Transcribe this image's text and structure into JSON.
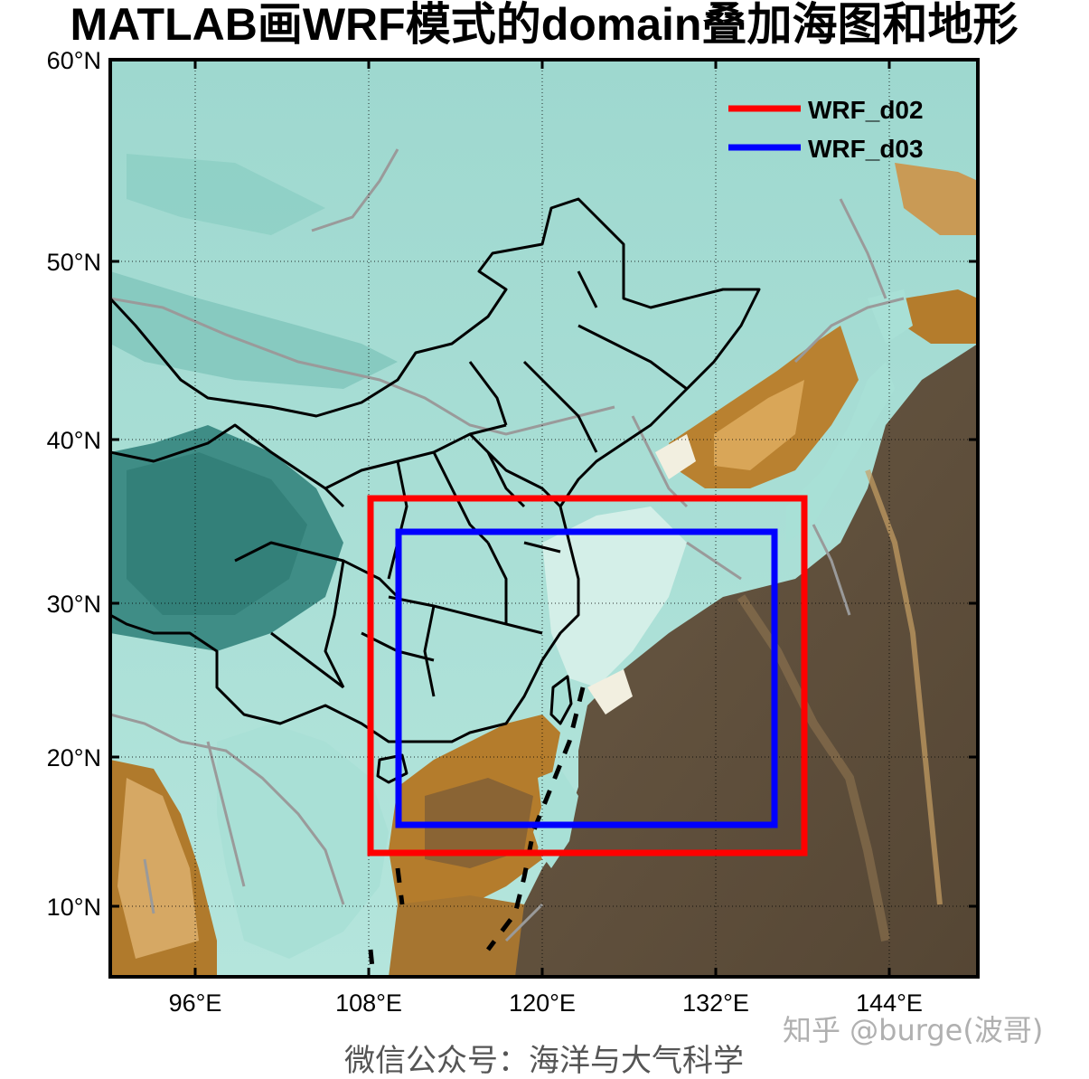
{
  "title": "MATLAB画WRF模式的domain叠加海图和地形",
  "map": {
    "projection": "mercator",
    "lon_range": [
      90,
      150
    ],
    "lat_range": [
      5.5,
      60
    ],
    "grid": "dotted",
    "lon_ticks": [
      {
        "value": 96,
        "label": "96°E"
      },
      {
        "value": 108,
        "label": "108°E"
      },
      {
        "value": 120,
        "label": "120°E"
      },
      {
        "value": 132,
        "label": "132°E"
      },
      {
        "value": 144,
        "label": "144°E"
      }
    ],
    "lat_ticks": [
      {
        "value": 10,
        "label": "10°N"
      },
      {
        "value": 20,
        "label": "20°N"
      },
      {
        "value": 30,
        "label": "30°N"
      },
      {
        "value": 40,
        "label": "40°N"
      },
      {
        "value": 50,
        "label": "50°N"
      },
      {
        "value": 60,
        "label": "60°N"
      }
    ],
    "colormap": {
      "land_high": "#3a8a82",
      "land_low": "#a8e0d6",
      "shelf": "#f5efe2",
      "sea_shallow": "#b07a2c",
      "sea_deep": "#5a4a38"
    },
    "domains": [
      {
        "name": "WRF_d02",
        "color": "#ff0000",
        "lon": [
          108,
          138
        ],
        "lat": [
          13.5,
          36.5
        ]
      },
      {
        "name": "WRF_d03",
        "color": "#0000ff",
        "lon": [
          110,
          136
        ],
        "lat": [
          15.5,
          34.5
        ]
      }
    ],
    "legend": {
      "location": "top-right",
      "items": [
        "WRF_d02",
        "WRF_d03"
      ]
    }
  },
  "watermark": "知乎 @burge(波哥)",
  "footer": "微信公众号：海洋与大气科学"
}
